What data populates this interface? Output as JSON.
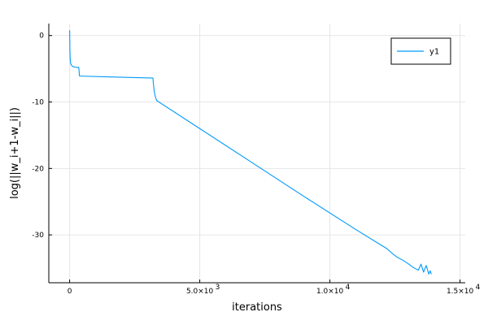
{
  "chart_data": {
    "type": "line",
    "title": "",
    "xlabel": "iterations",
    "ylabel": "log(||w_i+1-w_i||)",
    "xlim": [
      -800,
      15200
    ],
    "ylim": [
      -37.2,
      1.8
    ],
    "grid": true,
    "legend": {
      "position": "top-right",
      "entries": [
        "y1"
      ]
    },
    "x_ticks": [
      {
        "value": 0,
        "label": "0",
        "exp": ""
      },
      {
        "value": 5000,
        "label": "5.0×10",
        "exp": "3"
      },
      {
        "value": 10000,
        "label": "1.0×10",
        "exp": "4"
      },
      {
        "value": 15000,
        "label": "1.5×10",
        "exp": "4"
      }
    ],
    "y_ticks": [
      {
        "value": 0,
        "label": "0"
      },
      {
        "value": -10,
        "label": "-10"
      },
      {
        "value": -20,
        "label": "-20"
      },
      {
        "value": -30,
        "label": "-30"
      }
    ],
    "colors": {
      "series": "#009AFA"
    },
    "series": [
      {
        "name": "y1",
        "x": [
          0,
          5,
          10,
          20,
          40,
          60,
          80,
          100,
          150,
          200,
          260,
          300,
          350,
          380,
          400,
          3200,
          3220,
          3250,
          3300,
          3350,
          5000,
          7000,
          9000,
          11000,
          12200,
          12400,
          12600,
          12800,
          13000,
          13200,
          13400,
          13500,
          13600,
          13700,
          13800,
          13850,
          13900
        ],
        "y": [
          0.8,
          -0.5,
          -2.0,
          -3.5,
          -4.2,
          -4.4,
          -4.5,
          -4.6,
          -4.7,
          -4.75,
          -4.8,
          -4.8,
          -4.8,
          -6.1,
          -6.1,
          -6.4,
          -7.3,
          -8.4,
          -9.3,
          -9.8,
          -14.0,
          -19.1,
          -24.2,
          -29.2,
          -32.1,
          -32.8,
          -33.4,
          -33.8,
          -34.3,
          -34.9,
          -35.3,
          -34.4,
          -35.6,
          -34.6,
          -35.9,
          -35.4,
          -35.9
        ]
      }
    ]
  }
}
